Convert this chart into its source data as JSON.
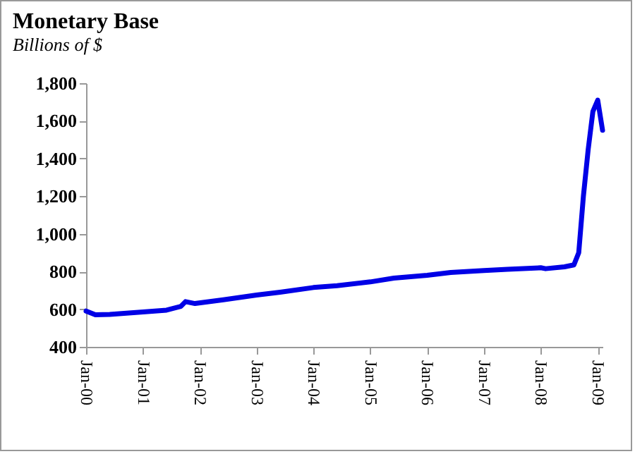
{
  "chart_data": {
    "type": "line",
    "title": "Monetary Base",
    "subtitle": "Billions of $",
    "x": [
      "2000-01",
      "2000-03",
      "2000-06",
      "2001-01",
      "2001-06",
      "2001-09",
      "2001-10",
      "2001-12",
      "2002-06",
      "2003-01",
      "2003-06",
      "2004-01",
      "2004-06",
      "2005-01",
      "2005-06",
      "2006-01",
      "2006-06",
      "2007-01",
      "2007-06",
      "2008-01",
      "2008-02",
      "2008-06",
      "2008-08",
      "2008-09",
      "2008-10",
      "2008-11",
      "2008-12",
      "2009-01",
      "2009-02"
    ],
    "series": [
      {
        "color": "#0000e6",
        "values": [
          590,
          570,
          572,
          585,
          595,
          615,
          640,
          630,
          650,
          675,
          690,
          715,
          725,
          745,
          765,
          780,
          795,
          805,
          812,
          820,
          815,
          825,
          835,
          900,
          1200,
          1450,
          1650,
          1710,
          1550
        ]
      }
    ],
    "xlim": [
      "2000-01",
      "2009-02"
    ],
    "xticks": [
      {
        "value": "2000-01",
        "label": "Jan-00"
      },
      {
        "value": "2001-01",
        "label": "Jan-01"
      },
      {
        "value": "2002-01",
        "label": "Jan-02"
      },
      {
        "value": "2003-01",
        "label": "Jan-03"
      },
      {
        "value": "2004-01",
        "label": "Jan-04"
      },
      {
        "value": "2005-01",
        "label": "Jan-05"
      },
      {
        "value": "2006-01",
        "label": "Jan-06"
      },
      {
        "value": "2007-01",
        "label": "Jan-07"
      },
      {
        "value": "2008-01",
        "label": "Jan-08"
      },
      {
        "value": "2009-01",
        "label": "Jan-09"
      }
    ],
    "ylim": [
      400,
      1800
    ],
    "yticks": [
      {
        "value": 400,
        "label": "400"
      },
      {
        "value": 600,
        "label": "600"
      },
      {
        "value": 800,
        "label": "800"
      },
      {
        "value": 1000,
        "label": "1,000"
      },
      {
        "value": 1200,
        "label": "1,200"
      },
      {
        "value": 1400,
        "label": "1,400"
      },
      {
        "value": 1600,
        "label": "1,600"
      },
      {
        "value": 1800,
        "label": "1,800"
      }
    ],
    "grid": false,
    "line_style": "solid",
    "marker": "none"
  }
}
